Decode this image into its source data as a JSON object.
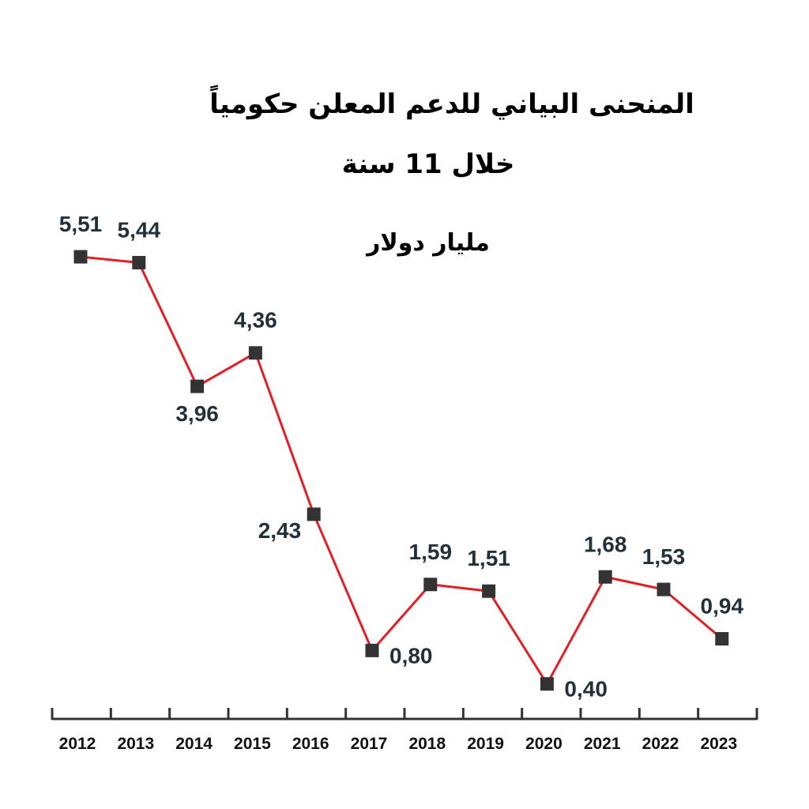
{
  "chart_data": {
    "type": "line",
    "title": "المنحنى البياني للدعم المعلن حكومياً",
    "subtitle": "خلال 11 سنة",
    "ylabel": "مليار دولار",
    "xlabel": "",
    "categories": [
      "2012",
      "2013",
      "2014",
      "2015",
      "2016",
      "2017",
      "2018",
      "2019",
      "2020",
      "2021",
      "2022",
      "2023"
    ],
    "values": [
      5.51,
      5.44,
      3.96,
      4.36,
      2.43,
      0.8,
      1.59,
      1.51,
      0.4,
      1.68,
      1.53,
      0.94
    ],
    "value_labels": [
      "5,51",
      "5,44",
      "3,96",
      "4,36",
      "2,43",
      "0,80",
      "1,59",
      "1,51",
      "0,40",
      "1,68",
      "1,53",
      "0,94"
    ],
    "label_positions": [
      "above",
      "above",
      "below",
      "above",
      "left",
      "right",
      "above",
      "above",
      "right",
      "above",
      "above",
      "above"
    ],
    "ylim": [
      0,
      5.8
    ],
    "grid": false,
    "legend": "none",
    "colors": {
      "line": "#e31e24",
      "marker": "#333333",
      "label": "#233038",
      "axis": "#333333"
    }
  }
}
